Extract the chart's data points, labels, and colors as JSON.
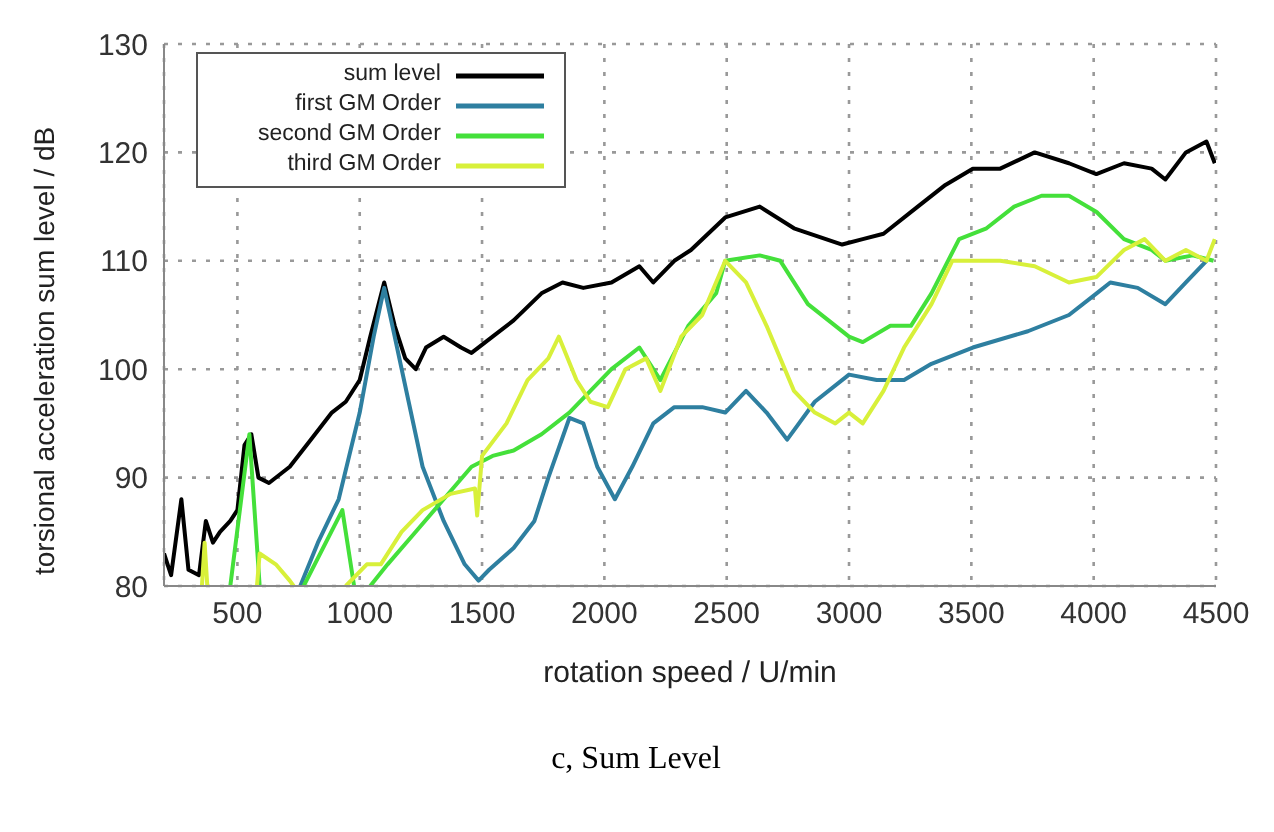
{
  "chart_data": {
    "type": "line",
    "xlabel": "rotation speed / U/min",
    "ylabel": "torsional acceleration sum level / dB",
    "annotations": [
      "c, Sum Level"
    ],
    "xlim": [
      200,
      4500
    ],
    "ylim": [
      80,
      130
    ],
    "xticks": [
      500,
      1000,
      1500,
      2000,
      2500,
      3000,
      3500,
      4000,
      4500
    ],
    "yticks": [
      80,
      90,
      100,
      110,
      120,
      130
    ],
    "grid": true,
    "legend": "top left",
    "marker": "none",
    "line_style": "solid",
    "series": [
      {
        "name": "sum level",
        "color": "#000000",
        "x": [
          200,
          229,
          271,
          300,
          343,
          371,
          400,
          429,
          471,
          500,
          529,
          557,
          586,
          629,
          714,
          800,
          886,
          943,
          1000,
          1043,
          1100,
          1143,
          1186,
          1229,
          1271,
          1343,
          1414,
          1457,
          1543,
          1629,
          1743,
          1829,
          1914,
          2029,
          2143,
          2200,
          2286,
          2354,
          2494,
          2635,
          2775,
          2972,
          3056,
          3141,
          3281,
          3394,
          3506,
          3618,
          3759,
          3899,
          4011,
          4124,
          4237,
          4293,
          4377,
          4461,
          4495
        ],
        "values": [
          83,
          81,
          88,
          81.5,
          81,
          86,
          84,
          85,
          86,
          87,
          93,
          94,
          90,
          89.5,
          91,
          93.5,
          96,
          97,
          99,
          103,
          108,
          104,
          101,
          100,
          102,
          103,
          102,
          101.5,
          103,
          104.5,
          107,
          108,
          107.5,
          108,
          109.5,
          108,
          110,
          111,
          114,
          115,
          113,
          111.5,
          112,
          112.5,
          115,
          117,
          118.5,
          118.5,
          120,
          119,
          118,
          119,
          118.5,
          117.5,
          120,
          121,
          119
        ]
      },
      {
        "name": "first GM Order",
        "color": "#2e7fa0",
        "x": [
          757,
          829,
          914,
          1000,
          1057,
          1100,
          1143,
          1200,
          1257,
          1343,
          1429,
          1486,
          1529,
          1629,
          1714,
          1771,
          1857,
          1914,
          1971,
          2043,
          2114,
          2200,
          2286,
          2400,
          2494,
          2579,
          2663,
          2747,
          2860,
          3000,
          3113,
          3225,
          3337,
          3506,
          3731,
          3899,
          4012,
          4068,
          4180,
          4293,
          4377,
          4461
        ],
        "values": [
          80,
          84,
          88,
          96,
          103,
          107.5,
          103,
          97,
          91,
          86,
          82,
          80.5,
          81.5,
          83.5,
          86,
          90,
          95.5,
          95,
          91,
          88,
          91,
          95,
          96.5,
          96.5,
          96,
          98,
          96,
          93.5,
          97,
          99.5,
          99,
          99,
          100.5,
          102,
          103.5,
          105,
          107,
          108,
          107.5,
          106,
          108,
          110
        ]
      },
      {
        "name": "second GM Order",
        "color": "#44e03a",
        "x": [
          471,
          549,
          591,
          680,
          771,
          929,
          977,
          1010,
          1043,
          1114,
          1229,
          1343,
          1457,
          1543,
          1629,
          1743,
          1857,
          1943,
          2029,
          2143,
          2229,
          2343,
          2457,
          2494,
          2635,
          2719,
          2832,
          3000,
          3056,
          3169,
          3253,
          3337,
          3450,
          3562,
          3675,
          3787,
          3899,
          4012,
          4124,
          4237,
          4293,
          4405,
          4490
        ],
        "values": [
          80,
          94,
          80,
          null,
          80,
          87,
          80,
          null,
          80,
          82,
          85,
          88,
          91,
          92,
          92.5,
          94,
          96,
          98,
          100,
          102,
          99,
          104,
          107,
          110,
          110.5,
          110,
          106,
          103,
          102.5,
          104,
          104,
          107,
          112,
          113,
          115,
          116,
          116,
          114.5,
          112,
          111,
          110,
          110.5,
          110
        ]
      },
      {
        "name": "third GM Order",
        "color": "#d8f03a",
        "x": [
          355,
          366,
          377,
          480,
          580,
          591,
          657,
          714,
          730,
          830,
          943,
          1029,
          1086,
          1171,
          1257,
          1371,
          1471,
          1480,
          1500,
          1600,
          1686,
          1771,
          1814,
          1886,
          1943,
          2014,
          2086,
          2171,
          2229,
          2314,
          2400,
          2494,
          2579,
          2663,
          2775,
          2860,
          2944,
          3000,
          3056,
          3141,
          3225,
          3337,
          3422,
          3506,
          3618,
          3759,
          3899,
          4011,
          4124,
          4208,
          4293,
          4377,
          4461,
          4495
        ],
        "values": [
          80,
          84,
          80,
          null,
          80,
          83,
          82,
          80.5,
          80,
          null,
          80,
          82,
          82,
          85,
          87,
          88.5,
          89,
          86.5,
          92,
          95,
          99,
          101,
          103,
          99,
          97,
          96.5,
          100,
          101,
          98,
          103,
          105,
          110,
          108,
          104,
          98,
          96,
          95,
          96,
          95,
          98,
          102,
          106,
          110,
          110,
          110,
          109.5,
          108,
          108.5,
          111,
          112,
          110,
          111,
          110,
          112
        ]
      }
    ]
  }
}
